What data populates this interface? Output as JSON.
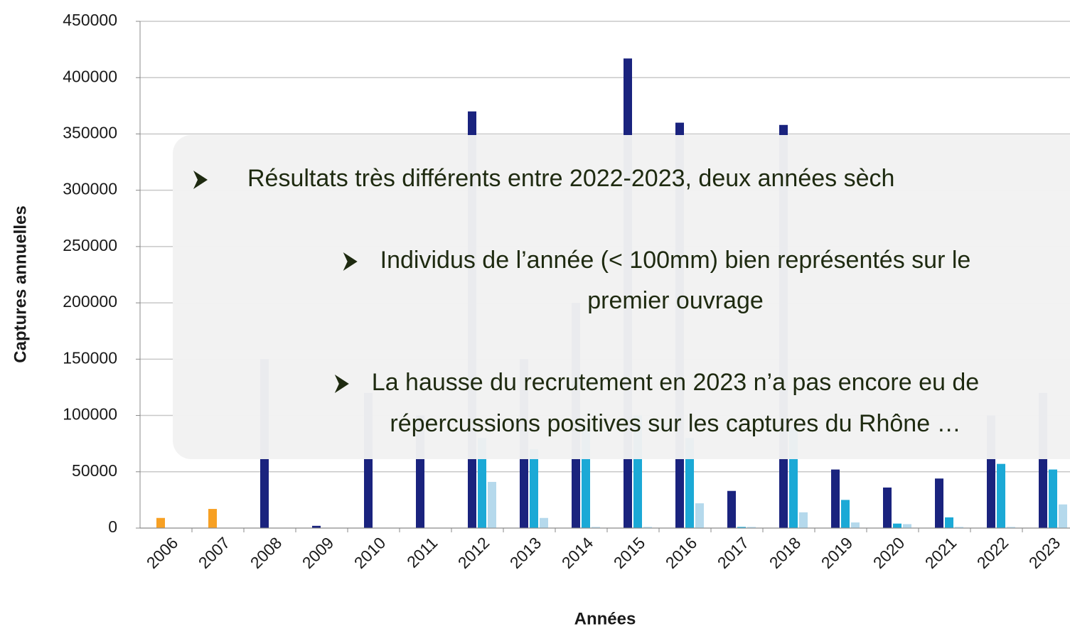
{
  "chart_data": {
    "type": "bar",
    "xlabel": "Années",
    "ylabel": "Captures annuelles",
    "categories": [
      "2006",
      "2007",
      "2008",
      "2009",
      "2010",
      "2011",
      "2012",
      "2013",
      "2014",
      "2015",
      "2016",
      "2017",
      "2018",
      "2019",
      "2020",
      "2021",
      "2022",
      "2023"
    ],
    "series": [
      {
        "color": "#f7a023",
        "values": [
          9000,
          17000,
          null,
          null,
          null,
          null,
          null,
          null,
          null,
          null,
          null,
          null,
          null,
          null,
          null,
          null,
          null,
          null
        ]
      },
      {
        "color": "#1a237e",
        "values": [
          null,
          null,
          150000,
          2000,
          120000,
          100000,
          370000,
          150000,
          200000,
          417000,
          360000,
          33000,
          358000,
          52000,
          36000,
          44000,
          100000,
          120000
        ]
      },
      {
        "color": "#1ba9d6",
        "values": [
          null,
          null,
          null,
          null,
          null,
          null,
          80000,
          70000,
          90000,
          100000,
          80000,
          1000,
          90000,
          25000,
          4000,
          9500,
          57000,
          52000
        ]
      },
      {
        "color": "#b5d9ec",
        "values": [
          null,
          null,
          null,
          null,
          null,
          null,
          41000,
          9000,
          1000,
          1000,
          22000,
          1000,
          14000,
          5000,
          3500,
          1000,
          1000,
          21000
        ]
      }
    ],
    "ylim": [
      0,
      450000
    ],
    "yticks": [
      0,
      50000,
      100000,
      150000,
      200000,
      250000,
      300000,
      350000,
      400000,
      450000
    ],
    "grid": true,
    "annotations": [
      {
        "lines": [
          "Résultats très différents entre 2022-2023, deux années sèch"
        ]
      },
      {
        "lines": [
          "Individus de l’année (< 100mm) bien représentés sur le",
          "premier ouvrage"
        ]
      },
      {
        "lines": [
          "La hausse du recrutement en 2023 n’a pas encore eu de",
          "répercussions positives sur les captures du Rhône …"
        ]
      }
    ]
  }
}
